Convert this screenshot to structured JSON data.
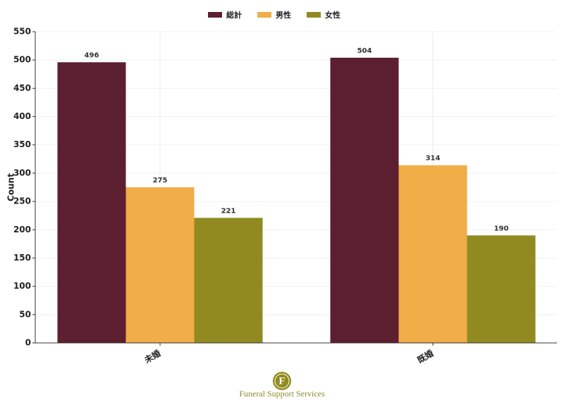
{
  "chart_data": {
    "type": "bar",
    "categories": [
      "未婚",
      "既婚"
    ],
    "series": [
      {
        "name": "総計",
        "color": "#5c1f30",
        "values": [
          496,
          504
        ]
      },
      {
        "name": "男性",
        "color": "#f0ad48",
        "values": [
          275,
          314
        ]
      },
      {
        "name": "女性",
        "color": "#918a20",
        "values": [
          221,
          190
        ]
      }
    ],
    "ylabel": "Count",
    "ylim": [
      0,
      550
    ],
    "yticks": [
      0,
      50,
      100,
      150,
      200,
      250,
      300,
      350,
      400,
      450,
      500,
      550
    ],
    "grid": true,
    "legend": "top"
  },
  "footer": {
    "logo_letter": "F",
    "text": "Funeral Support Services"
  }
}
